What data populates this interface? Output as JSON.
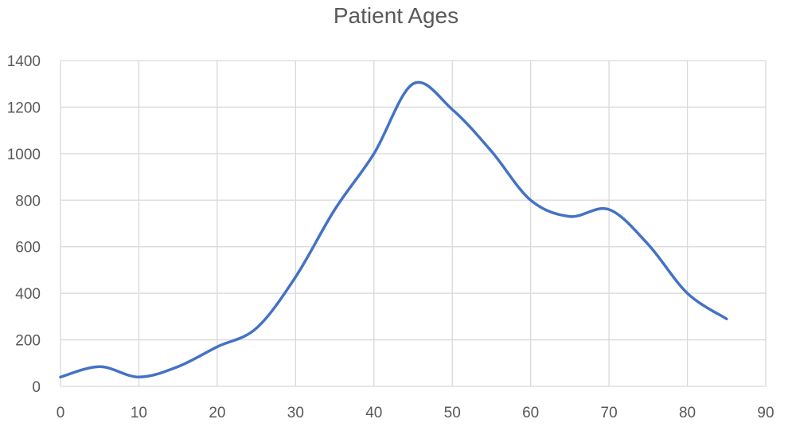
{
  "chart_data": {
    "type": "line",
    "title": "Patient Ages",
    "xlabel": "",
    "ylabel": "",
    "xlim": [
      0,
      90
    ],
    "ylim": [
      0,
      1400
    ],
    "x_ticks": [
      0,
      10,
      20,
      30,
      40,
      50,
      60,
      70,
      80,
      90
    ],
    "y_ticks": [
      0,
      200,
      400,
      600,
      800,
      1000,
      1200,
      1400
    ],
    "grid": true,
    "smooth": true,
    "series": [
      {
        "name": "",
        "color": "#4472c4",
        "x": [
          0,
          5,
          10,
          15,
          20,
          25,
          30,
          35,
          40,
          45,
          50,
          55,
          60,
          65,
          70,
          75,
          80,
          85
        ],
        "y": [
          40,
          85,
          40,
          85,
          170,
          250,
          470,
          760,
          1000,
          1300,
          1190,
          1010,
          800,
          730,
          760,
          610,
          400,
          290
        ]
      }
    ]
  }
}
